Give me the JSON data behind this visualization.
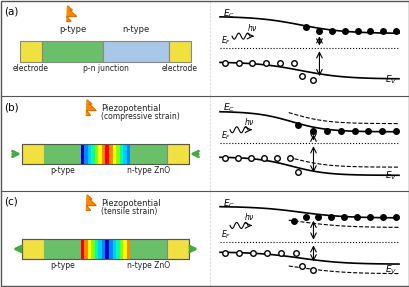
{
  "panel_labels": [
    "(a)",
    "(b)",
    "(c)"
  ],
  "panel_a": {
    "ptype_color": "#6abf69",
    "ntype_color": "#a8c8e8",
    "electrode_color": "#f0e040",
    "electrode_border": "#888888",
    "bar_border": "#555555",
    "labels": {
      "ptype": "p-type",
      "ntype": "n-type",
      "junction": "p-n junction",
      "electrode_left": "electrode",
      "electrode_right": "electrode"
    }
  },
  "panel_b_c": {
    "ptype_color": "#6abf69",
    "electrode_color": "#f0e040",
    "labels": {
      "ptype": "p-type",
      "ntype": "n-type ZnO"
    }
  },
  "background": "#f5f5f5",
  "border_color": "#555555",
  "text_color": "#222222",
  "arrow_color": "#44aa44"
}
